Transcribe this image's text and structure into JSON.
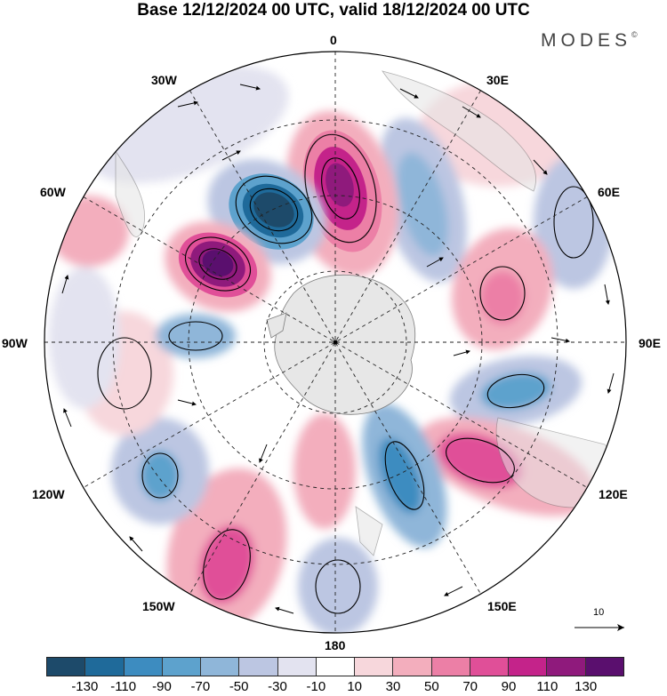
{
  "title": "Base 12/12/2024 00 UTC, valid 18/12/2024 00 UTC",
  "brand": "MODES",
  "brand_mark": "©",
  "longitude_labels": {
    "lon_0": "0",
    "lon_30e": "30E",
    "lon_60e": "60E",
    "lon_90e": "90E",
    "lon_120e": "120E",
    "lon_150e": "150E",
    "lon_180": "180",
    "lon_150w": "150W",
    "lon_120w": "120W",
    "lon_90w": "90W",
    "lon_60w": "60W",
    "lon_30w": "30W"
  },
  "reference_vector": "10",
  "colorbar": {
    "colors": [
      "#1d4a6a",
      "#1f6a9a",
      "#3d8cc0",
      "#5da2cd",
      "#8fb6d9",
      "#bcc6e2",
      "#e3e3f0",
      "#ffffff",
      "#f7d7dc",
      "#f3aebd",
      "#ec7fa6",
      "#e04f98",
      "#c4238a",
      "#8f1a7c",
      "#5a0f6e"
    ],
    "tick_labels": [
      "-130",
      "-110",
      "-90",
      "-70",
      "-50",
      "-30",
      "-10",
      "10",
      "30",
      "50",
      "70",
      "90",
      "110",
      "130"
    ]
  },
  "map_features": {
    "projection": "south-polar-stereographic",
    "field": "shaded anomaly with streamlines",
    "center_icon": "pole-point-icon"
  }
}
